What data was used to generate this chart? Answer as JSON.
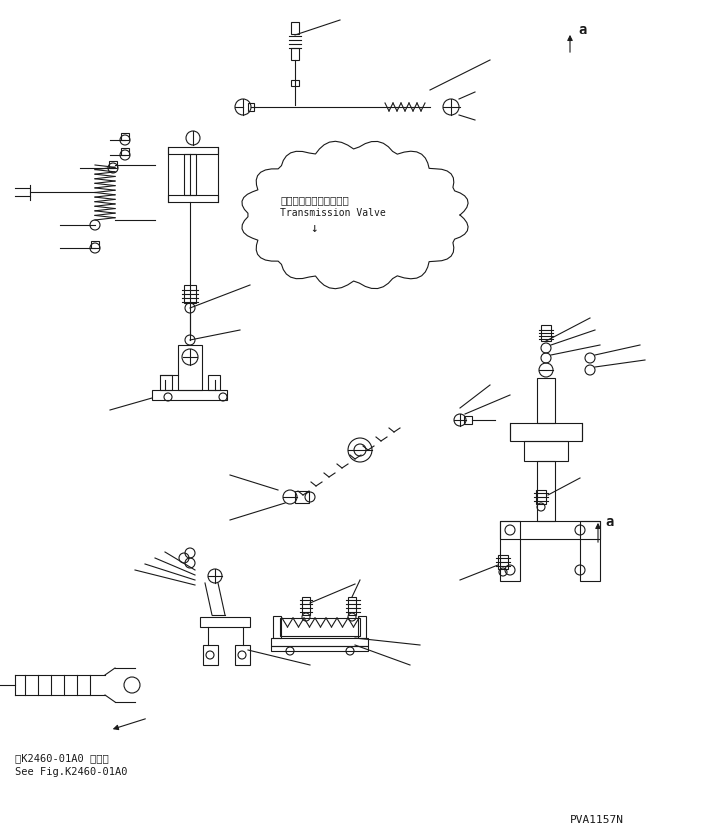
{
  "bg_color": "#ffffff",
  "line_color": "#1a1a1a",
  "fig_width": 7.03,
  "fig_height": 8.36,
  "dpi": 100,
  "title_jp": "トランスミションバルブ",
  "title_en": "Transmission Valve",
  "title_arrow": "↓",
  "bottom_text1": "第K2460-01A0 図参照",
  "bottom_text2": "See Fig.K2460-01A0",
  "part_number": "PVA1157N",
  "label_a": "a"
}
